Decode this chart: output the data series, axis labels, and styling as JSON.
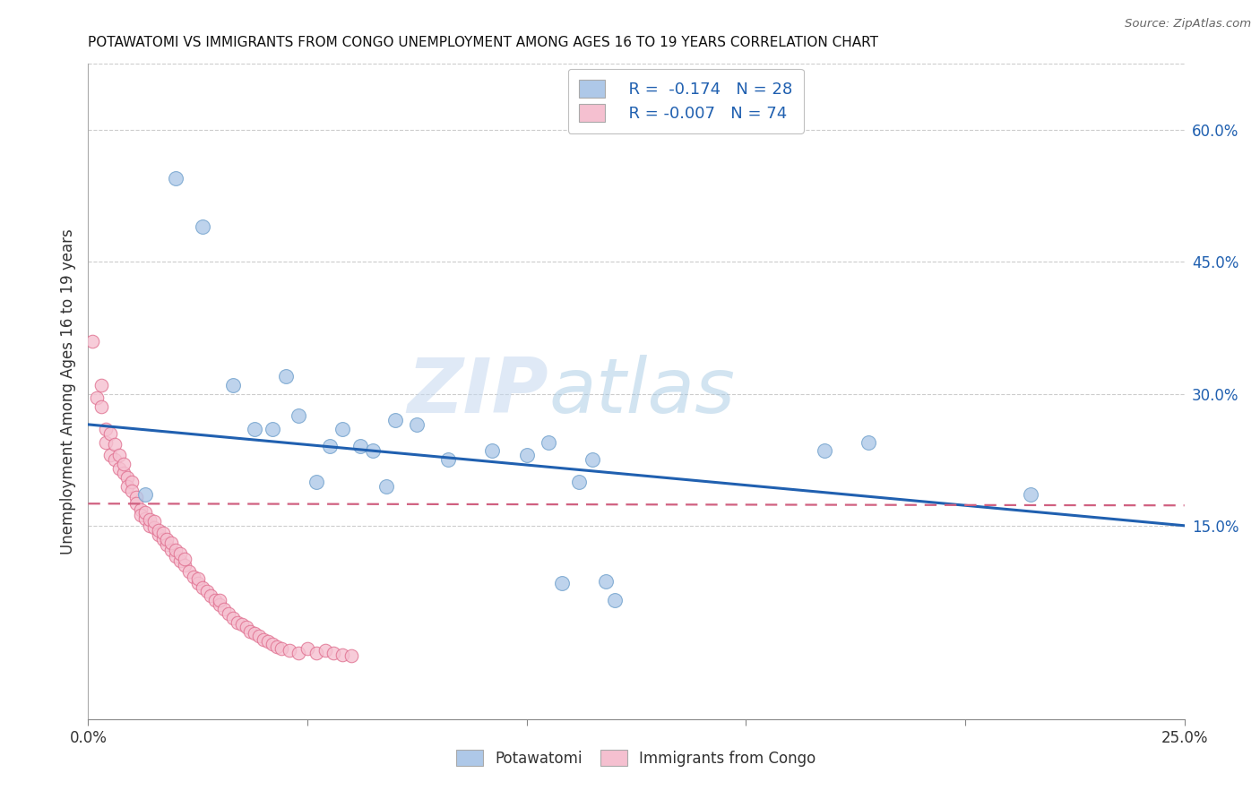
{
  "title": "POTAWATOMI VS IMMIGRANTS FROM CONGO UNEMPLOYMENT AMONG AGES 16 TO 19 YEARS CORRELATION CHART",
  "source": "Source: ZipAtlas.com",
  "ylabel": "Unemployment Among Ages 16 to 19 years",
  "ytick_labels": [
    "15.0%",
    "30.0%",
    "45.0%",
    "60.0%"
  ],
  "ytick_values": [
    0.15,
    0.3,
    0.45,
    0.6
  ],
  "xlim": [
    0.0,
    0.25
  ],
  "ylim": [
    -0.07,
    0.675
  ],
  "watermark_zip": "ZIP",
  "watermark_atlas": "atlas",
  "legend_blue_label": "Potawatomi",
  "legend_pink_label": "Immigrants from Congo",
  "blue_color": "#aec8e8",
  "blue_edge_color": "#6fa0cc",
  "pink_color": "#f5c0d0",
  "pink_edge_color": "#e07090",
  "trendline_blue_color": "#2060b0",
  "trendline_pink_color": "#d06080",
  "blue_trend_x0": 0.0,
  "blue_trend_x1": 0.25,
  "blue_trend_y0": 0.265,
  "blue_trend_y1": 0.15,
  "pink_trend_x0": 0.0,
  "pink_trend_x1": 0.25,
  "pink_trend_y0": 0.175,
  "pink_trend_y1": 0.173,
  "grid_color": "#cccccc",
  "background_color": "#ffffff",
  "blue_points_x": [
    0.013,
    0.02,
    0.026,
    0.033,
    0.038,
    0.042,
    0.045,
    0.048,
    0.052,
    0.055,
    0.058,
    0.062,
    0.065,
    0.068,
    0.07,
    0.075,
    0.082,
    0.092,
    0.1,
    0.105,
    0.108,
    0.112,
    0.115,
    0.118,
    0.12,
    0.168,
    0.178,
    0.215
  ],
  "blue_points_y": [
    0.185,
    0.545,
    0.49,
    0.31,
    0.26,
    0.26,
    0.32,
    0.275,
    0.2,
    0.24,
    0.26,
    0.24,
    0.235,
    0.195,
    0.27,
    0.265,
    0.225,
    0.235,
    0.23,
    0.245,
    0.085,
    0.2,
    0.225,
    0.087,
    0.065,
    0.235,
    0.245,
    0.185
  ],
  "pink_points_x": [
    0.001,
    0.002,
    0.003,
    0.003,
    0.004,
    0.004,
    0.005,
    0.005,
    0.006,
    0.006,
    0.007,
    0.007,
    0.008,
    0.008,
    0.009,
    0.009,
    0.01,
    0.01,
    0.011,
    0.011,
    0.012,
    0.012,
    0.013,
    0.013,
    0.014,
    0.014,
    0.015,
    0.015,
    0.016,
    0.016,
    0.017,
    0.017,
    0.018,
    0.018,
    0.019,
    0.019,
    0.02,
    0.02,
    0.021,
    0.021,
    0.022,
    0.022,
    0.023,
    0.024,
    0.025,
    0.025,
    0.026,
    0.027,
    0.028,
    0.029,
    0.03,
    0.03,
    0.031,
    0.032,
    0.033,
    0.034,
    0.035,
    0.036,
    0.037,
    0.038,
    0.039,
    0.04,
    0.041,
    0.042,
    0.043,
    0.044,
    0.046,
    0.048,
    0.05,
    0.052,
    0.054,
    0.056,
    0.058,
    0.06
  ],
  "pink_points_y": [
    0.36,
    0.295,
    0.31,
    0.285,
    0.26,
    0.245,
    0.255,
    0.23,
    0.225,
    0.242,
    0.215,
    0.23,
    0.21,
    0.22,
    0.205,
    0.195,
    0.2,
    0.19,
    0.182,
    0.175,
    0.168,
    0.162,
    0.158,
    0.165,
    0.15,
    0.157,
    0.148,
    0.155,
    0.14,
    0.145,
    0.135,
    0.142,
    0.128,
    0.135,
    0.122,
    0.13,
    0.115,
    0.122,
    0.11,
    0.118,
    0.105,
    0.112,
    0.098,
    0.092,
    0.085,
    0.09,
    0.08,
    0.075,
    0.07,
    0.065,
    0.06,
    0.065,
    0.055,
    0.05,
    0.045,
    0.04,
    0.038,
    0.035,
    0.03,
    0.028,
    0.025,
    0.02,
    0.018,
    0.015,
    0.012,
    0.01,
    0.008,
    0.005,
    0.01,
    0.005,
    0.008,
    0.005,
    0.003,
    0.002
  ]
}
